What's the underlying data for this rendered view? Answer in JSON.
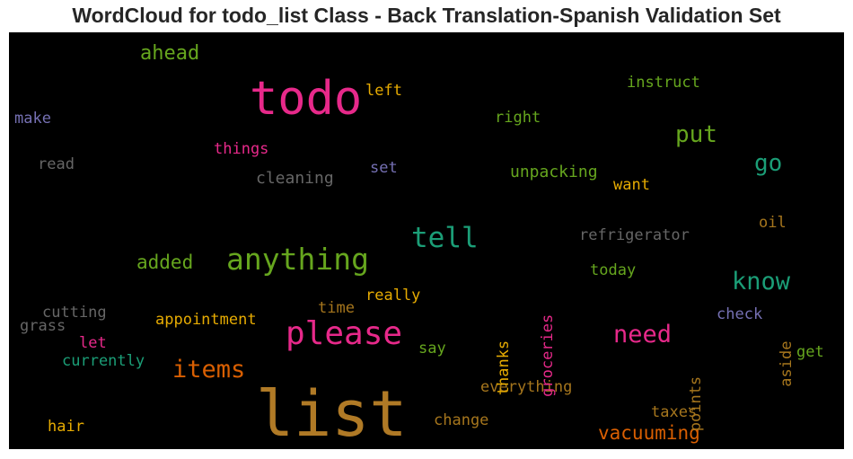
{
  "title": "WordCloud for todo_list Class - Back Translation-Spanish Validation Set",
  "chart_data": {
    "type": "wordcloud",
    "title": "WordCloud for todo_list Class - Back Translation-Spanish Validation Set",
    "background": "#000000",
    "words": [
      {
        "text": "list",
        "color": "#b07a26"
      },
      {
        "text": "todo",
        "color": "#e7298a"
      },
      {
        "text": "please",
        "color": "#e7298a"
      },
      {
        "text": "anything",
        "color": "#66a61e"
      },
      {
        "text": "tell",
        "color": "#1b9e77"
      },
      {
        "text": "items",
        "color": "#d95f02"
      },
      {
        "text": "need",
        "color": "#e7298a"
      },
      {
        "text": "know",
        "color": "#1b9e77"
      },
      {
        "text": "put",
        "color": "#66a61e"
      },
      {
        "text": "go",
        "color": "#1b9e77"
      },
      {
        "text": "vacuuming",
        "color": "#d95f02"
      },
      {
        "text": "ahead",
        "color": "#66a61e"
      },
      {
        "text": "added",
        "color": "#66a61e"
      },
      {
        "text": "cleaning",
        "color": "#666666"
      },
      {
        "text": "unpacking",
        "color": "#66a61e"
      },
      {
        "text": "refrigerator",
        "color": "#666666"
      },
      {
        "text": "everything",
        "color": "#a6761d"
      },
      {
        "text": "appointment",
        "color": "#e6ab02"
      },
      {
        "text": "instruct",
        "color": "#66a61e"
      },
      {
        "text": "groceries",
        "color": "#e7298a"
      },
      {
        "text": "thanks",
        "color": "#e6ab02"
      },
      {
        "text": "points",
        "color": "#a6761d"
      },
      {
        "text": "aside",
        "color": "#a6761d"
      },
      {
        "text": "things",
        "color": "#e7298a"
      },
      {
        "text": "cutting",
        "color": "#666666"
      },
      {
        "text": "grass",
        "color": "#666666"
      },
      {
        "text": "currently",
        "color": "#1b9e77"
      },
      {
        "text": "right",
        "color": "#66a61e"
      },
      {
        "text": "left",
        "color": "#e6ab02"
      },
      {
        "text": "make",
        "color": "#7570b3"
      },
      {
        "text": "read",
        "color": "#666666"
      },
      {
        "text": "set",
        "color": "#7570b3"
      },
      {
        "text": "want",
        "color": "#e6ab02"
      },
      {
        "text": "oil",
        "color": "#a6761d"
      },
      {
        "text": "today",
        "color": "#66a61e"
      },
      {
        "text": "really",
        "color": "#e6ab02"
      },
      {
        "text": "time",
        "color": "#a6761d"
      },
      {
        "text": "check",
        "color": "#7570b3"
      },
      {
        "text": "let",
        "color": "#e7298a"
      },
      {
        "text": "say",
        "color": "#66a61e"
      },
      {
        "text": "get",
        "color": "#66a61e"
      },
      {
        "text": "taxes",
        "color": "#a6761d"
      },
      {
        "text": "change",
        "color": "#a6761d"
      },
      {
        "text": "hair",
        "color": "#e6ab02"
      }
    ]
  }
}
